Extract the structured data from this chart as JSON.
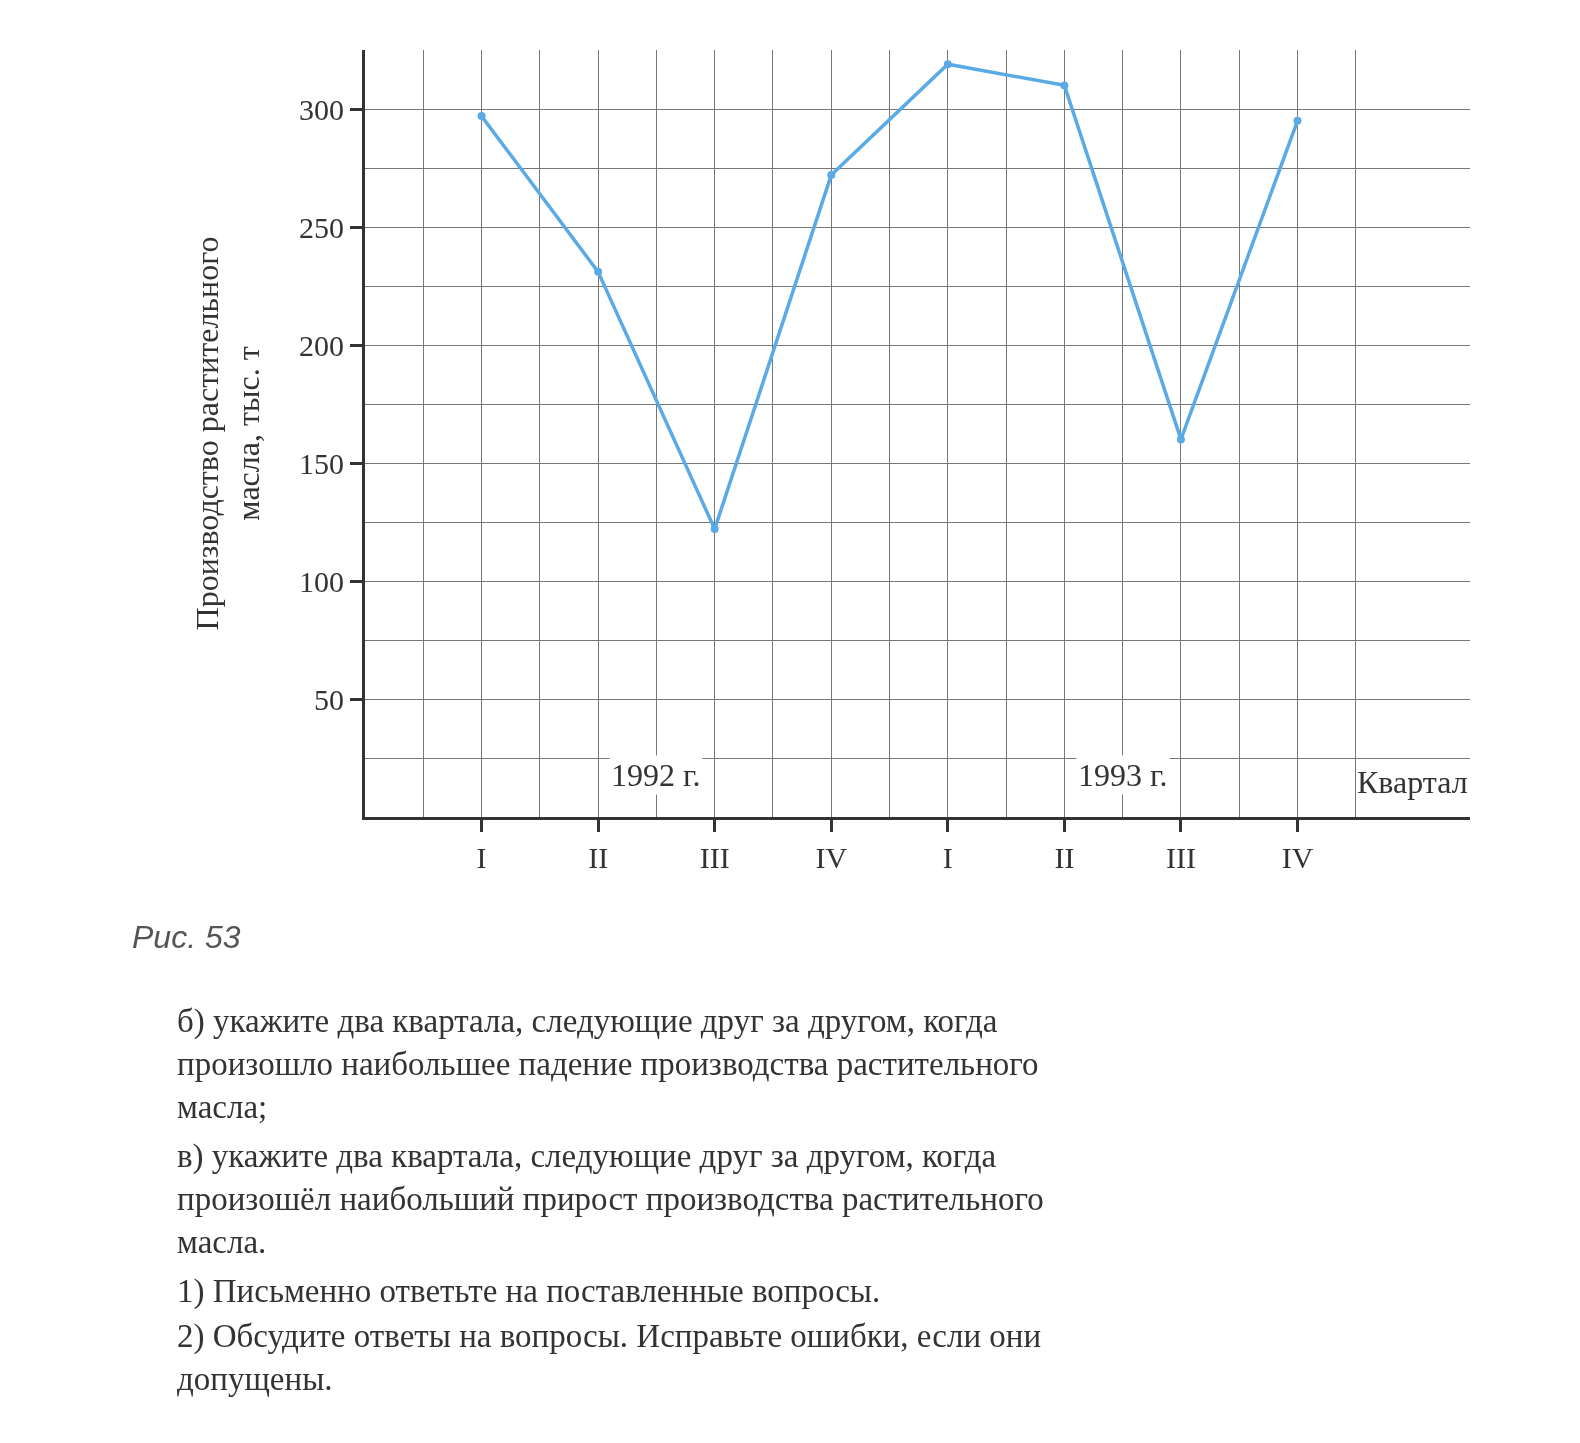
{
  "chart_data": {
    "type": "line",
    "ylabel": "Производство растительного\nмасла, тыс. т",
    "xlabel": "Квартал",
    "categories": [
      "I",
      "II",
      "III",
      "IV",
      "I",
      "II",
      "III",
      "IV"
    ],
    "series": [
      {
        "color": "#5aaae6",
        "values": [
          297,
          231,
          122,
          272,
          319,
          310,
          160,
          295
        ]
      }
    ],
    "ylim": [
      0,
      325
    ],
    "yticks": [
      50,
      100,
      150,
      200,
      250,
      300
    ],
    "grid": true,
    "marker": "circle",
    "line_style": "solid",
    "annotations": [
      "1992 г.",
      "1993 г.",
      "Рис. 53",
      "б) укажите два квартала, следующие друг за другом, когда\nпроизошло наибольшее падение производства растительного\nмасла;",
      "в) укажите два квартала, следующие друг за другом, когда\nпроизошёл наибольший прирост производства растительного\nмасла.",
      "1) Письменно ответьте на поставленные вопросы.",
      "2) Обсудите ответы на вопросы. Исправьте ошибки, если они\nдопущены."
    ]
  }
}
